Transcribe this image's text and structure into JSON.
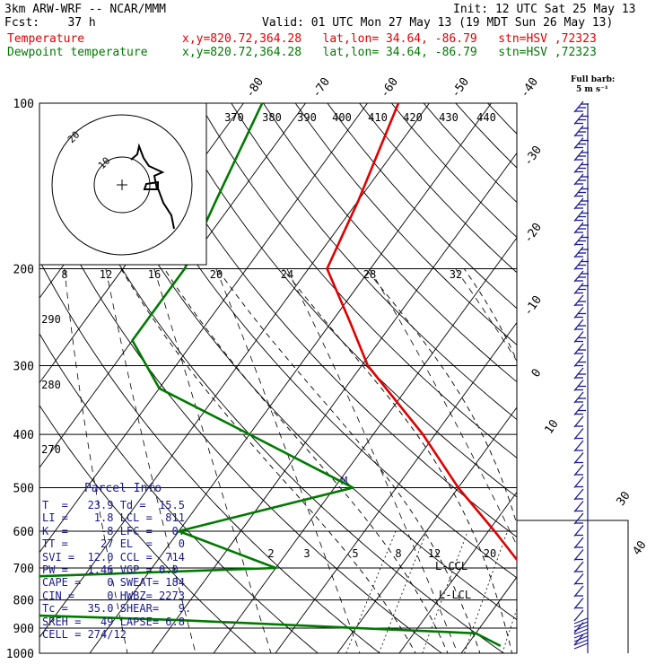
{
  "header": {
    "model": "3km ARW-WRF -- NCAR/MMM",
    "init": "Init: 12 UTC Sat 25 May 13",
    "fcst": "Fcst:    37 h",
    "valid": "Valid: 01 UTC Mon 27 May 13 (19 MDT Sun 26 May 13)",
    "temp_label": "Temperature",
    "dew_label": "Dewpoint temperature",
    "point_info": "x,y=820.72,364.28   lat,lon= 34.64, -86.79   stn=HSV ,72323",
    "barb_title": "Full barb:",
    "barb_unit": "5 m s⁻¹"
  },
  "colors": {
    "temperature": "#e00000",
    "dewpoint": "#007a00",
    "barbs": "#1a1a8c",
    "grid": "#000000"
  },
  "chart_data": {
    "type": "skew-t",
    "y_scale": "log-pressure",
    "pressure_ticks": [
      100,
      200,
      300,
      400,
      500,
      600,
      700,
      800,
      900,
      1000
    ],
    "isotherm_labels": [
      -80,
      -70,
      -60,
      -50,
      -40,
      -30,
      -20,
      -10,
      0,
      10,
      30,
      40
    ],
    "potential_temp_labels": [
      370,
      380,
      390,
      400,
      410,
      420,
      430,
      440,
      290,
      280,
      270
    ],
    "mixing_ratio_labels": [
      2,
      3,
      5,
      8,
      12,
      20
    ],
    "wind_speed_labels": [
      "8",
      "12",
      "16",
      "20",
      "24",
      "28",
      "32"
    ],
    "wind_speed_unit": "kts",
    "annotations": [
      "M",
      "L-CCL",
      "L-LCL"
    ],
    "temperature": [
      {
        "p": 100,
        "t": -65
      },
      {
        "p": 150,
        "t": -60
      },
      {
        "p": 200,
        "t": -57
      },
      {
        "p": 250,
        "t": -47
      },
      {
        "p": 300,
        "t": -39
      },
      {
        "p": 400,
        "t": -22
      },
      {
        "p": 500,
        "t": -10
      },
      {
        "p": 600,
        "t": 1
      },
      {
        "p": 700,
        "t": 10
      },
      {
        "p": 800,
        "t": 17
      },
      {
        "p": 900,
        "t": 21
      },
      {
        "p": 970,
        "t": 23.9
      }
    ],
    "dewpoint": [
      {
        "p": 100,
        "t": -87
      },
      {
        "p": 150,
        "t": -83
      },
      {
        "p": 200,
        "t": -80
      },
      {
        "p": 270,
        "t": -80
      },
      {
        "p": 330,
        "t": -70
      },
      {
        "p": 400,
        "t": -50
      },
      {
        "p": 500,
        "t": -27
      },
      {
        "p": 600,
        "t": -50
      },
      {
        "p": 700,
        "t": -30
      },
      {
        "p": 790,
        "t": -160
      },
      {
        "p": 870,
        "t": -40
      },
      {
        "p": 920,
        "t": 10
      },
      {
        "p": 970,
        "t": 15.5
      }
    ]
  },
  "parcel_info": {
    "title": "Parcel Info",
    "rows": [
      "T  =   23.9 Td =  15.5",
      "LI =    1.8 LCL =  811",
      "K  =     -8 LFC =   0.",
      "TT =     27 EL  =    0",
      "SVI =  12.0 CCL =  714",
      "PW =   1.46 VGP = 0.0",
      "CAPE =    0 SWEAT= 184",
      "CIN =     0 HWBZ= 2273",
      "Tc =   35.0 SHEAR=   9.",
      "SREH =   49 LAPSE= 6.8",
      "CELL = 274/12"
    ]
  },
  "hodograph": {
    "ring_labels": [
      "20",
      "10"
    ]
  }
}
